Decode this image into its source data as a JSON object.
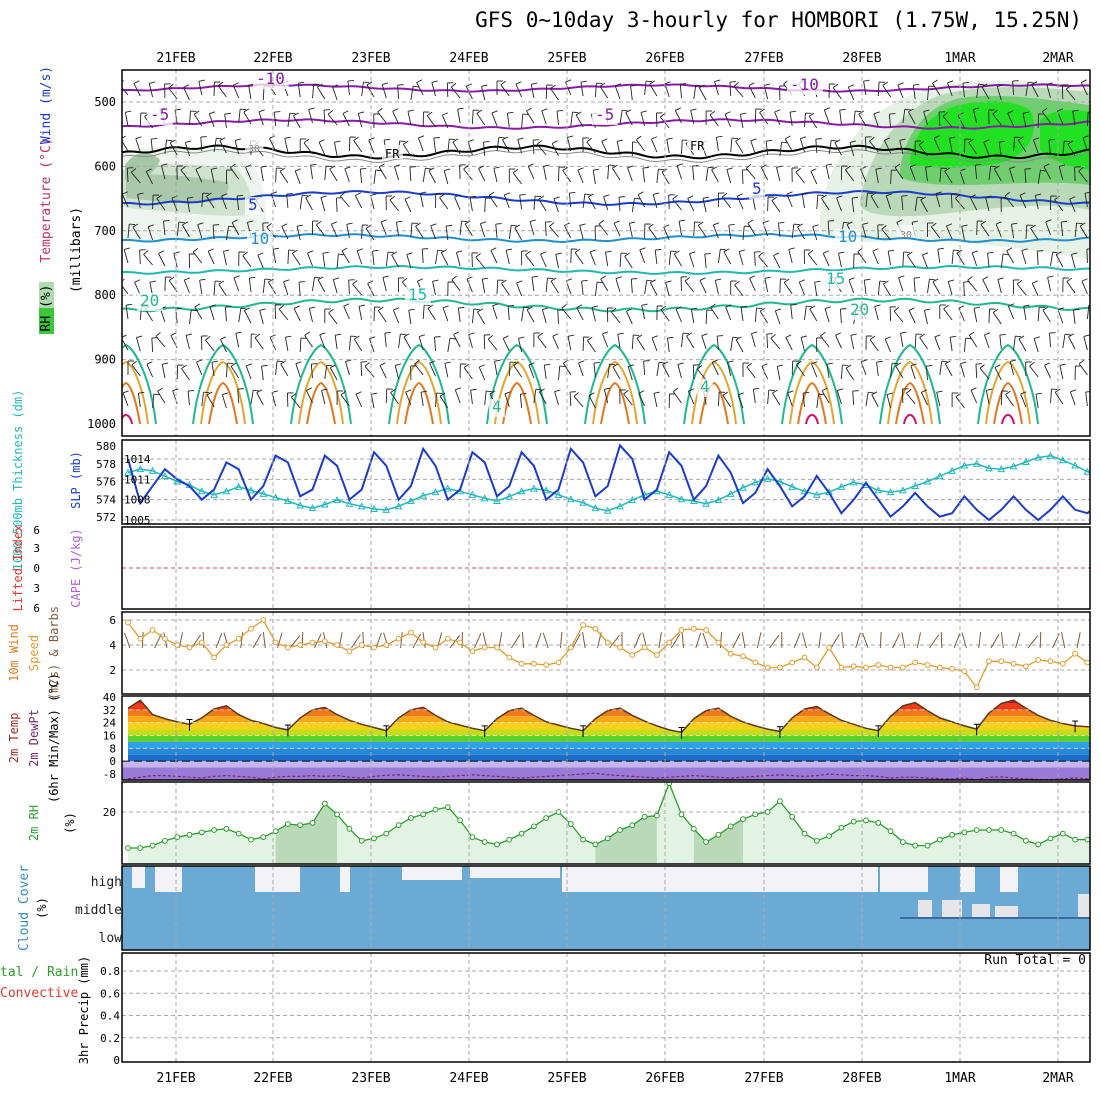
{
  "title": "GFS 0~10day 3-hourly for HOMBORI (1.75W, 15.25N)",
  "dates": [
    "21FEB",
    "22FEB",
    "23FEB",
    "24FEB",
    "25FEB",
    "26FEB",
    "27FEB",
    "28FEB",
    "1MAR",
    "2MAR"
  ],
  "colors": {
    "grid": "#a8a8a8",
    "slp": "#1a3cc8",
    "thickness": "#22b8c0",
    "wind_speed": "#e29b2e",
    "dewpoint": "#7a2a6e",
    "rh_line": "#2aa02a",
    "rh_fill": "#e3f3e3",
    "cloud": "#6aaad4",
    "cloud_clear": "#f3f2f7",
    "lifted_zero": "#e04848"
  },
  "panels": {
    "profile": {
      "ylabel_parts": [
        "RH (%)",
        "Temperature (°C)",
        "Wind (m/s)"
      ],
      "ylabel_units": "(millibars)",
      "y_ticks": [
        "500",
        "600",
        "700",
        "800",
        "900",
        "1000"
      ],
      "labels": [
        "-10",
        "-10",
        "-5",
        "-5",
        "FR",
        "FR",
        "5",
        "5",
        "10",
        "10",
        "15",
        "15",
        "20",
        "20",
        "30",
        "30",
        "4",
        "4"
      ],
      "y_range": [
        450,
        1000
      ]
    },
    "slp": {
      "ylabel_left": "1000-500mb Thickness (dm)",
      "ylabel_right": "SLP (mb)",
      "thickness_ticks": [
        "580",
        "578",
        "576",
        "574",
        "572"
      ],
      "slp_ticks": [
        "1014",
        "1011",
        "1008",
        "1005"
      ]
    },
    "cape": {
      "ylabel_left": "Lifted Index",
      "ylabel_right": "CAPE (J/kg)",
      "ticks": [
        "6",
        "3",
        "0",
        "3",
        "6"
      ]
    },
    "wind10m": {
      "ylabel_a": "10m Wind",
      "ylabel_b": "Speed",
      "ylabel_c": "(m/s) & Barbs",
      "ticks": [
        "6",
        "4",
        "2"
      ]
    },
    "temp2m": {
      "ylabel_a": "2m Temp",
      "ylabel_b": "2m DewPt",
      "ylabel_c": "(6hr Min/Max) (°C)",
      "ticks": [
        "40",
        "32",
        "24",
        "16",
        "8",
        "0",
        "-8"
      ]
    },
    "rh2m": {
      "ylabel": "2m RH",
      "unit": "(%)",
      "ticks": [
        "20"
      ]
    },
    "cloud": {
      "ylabel": "Cloud Cover",
      "unit": "(%)",
      "levels": [
        "high",
        "middle",
        "low"
      ]
    },
    "precip": {
      "ylabel_a": "tal / Rain",
      "ylabel_b": "Convective",
      "ylabel_c": "3hr Precip (mm)",
      "ticks": [
        "0.8",
        "0.6",
        "0.4",
        "0.2",
        "0"
      ],
      "run_total": "Run Total = 0"
    }
  },
  "chart_data": [
    {
      "type": "line",
      "name": "sea level pressure and 1000-500mb thickness",
      "x": [
        "20FEB 12Z",
        "20FEB 15Z",
        "20FEB 18Z",
        "20FEB 21Z",
        "21FEB 00Z",
        "21FEB 03Z",
        "21FEB 06Z",
        "21FEB 09Z",
        "21FEB 12Z",
        "21FEB 15Z",
        "21FEB 18Z",
        "21FEB 21Z",
        "22FEB 00Z",
        "22FEB 03Z",
        "22FEB 06Z",
        "22FEB 09Z",
        "22FEB 12Z",
        "22FEB 15Z",
        "22FEB 18Z",
        "22FEB 21Z",
        "23FEB 00Z",
        "23FEB 03Z",
        "23FEB 06Z",
        "23FEB 09Z",
        "23FEB 12Z",
        "23FEB 15Z",
        "23FEB 18Z",
        "23FEB 21Z",
        "24FEB 00Z",
        "24FEB 03Z",
        "24FEB 06Z",
        "24FEB 09Z",
        "24FEB 12Z",
        "24FEB 15Z",
        "24FEB 18Z",
        "24FEB 21Z",
        "25FEB 00Z",
        "25FEB 03Z",
        "25FEB 06Z",
        "25FEB 09Z",
        "25FEB 12Z",
        "25FEB 15Z",
        "25FEB 18Z",
        "25FEB 21Z",
        "26FEB 00Z",
        "26FEB 03Z",
        "26FEB 06Z",
        "26FEB 09Z",
        "26FEB 12Z",
        "26FEB 15Z",
        "26FEB 18Z",
        "26FEB 21Z",
        "27FEB 00Z",
        "27FEB 03Z",
        "27FEB 06Z",
        "27FEB 09Z",
        "27FEB 12Z",
        "27FEB 15Z",
        "27FEB 18Z",
        "27FEB 21Z",
        "28FEB 00Z",
        "28FEB 03Z",
        "28FEB 06Z",
        "28FEB 09Z",
        "28FEB 12Z",
        "28FEB 15Z",
        "28FEB 18Z",
        "28FEB 21Z",
        "1MAR 00Z",
        "1MAR 03Z",
        "1MAR 06Z",
        "1MAR 09Z",
        "1MAR 12Z",
        "1MAR 15Z",
        "1MAR 18Z",
        "1MAR 21Z",
        "2MAR 00Z",
        "2MAR 03Z",
        "2MAR 06Z",
        "2MAR 09Z"
      ],
      "series": [
        {
          "values": [
            1014.0,
            1007.5,
            1010.0,
            1012.5,
            1011.0,
            1010.0,
            1008.0,
            1009.5,
            1013.5,
            1012.5,
            1008.0,
            1010.0,
            1014.5,
            1013.5,
            1008.5,
            1009.5,
            1014.5,
            1013.0,
            1008.0,
            1009.5,
            1015.0,
            1013.0,
            1008.0,
            1010.0,
            1015.5,
            1013.0,
            1008.0,
            1009.5,
            1015.0,
            1013.5,
            1008.5,
            1010.0,
            1015.0,
            1013.0,
            1008.0,
            1009.5,
            1015.5,
            1013.5,
            1008.5,
            1010.0,
            1016.0,
            1014.0,
            1008.0,
            1009.5,
            1015.0,
            1013.0,
            1008.0,
            1010.0,
            1014.5,
            1012.0,
            1007.5,
            1009.0,
            1012.5,
            1010.0,
            1007.0,
            1008.5,
            1011.5,
            1009.0,
            1006.0,
            1008.0,
            1010.5,
            1008.0,
            1005.5,
            1007.0,
            1009.0,
            1007.0,
            1005.5,
            1006.0,
            1008.5,
            1006.5,
            1005.0,
            1006.5,
            1008.5,
            1006.5,
            1005.0,
            1006.5,
            1008.5,
            1006.5,
            1006.0,
            1007.5
          ]
        },
        {
          "values": [
            577.0,
            577.4,
            577.2,
            576.6,
            576.0,
            575.6,
            574.9,
            574.5,
            574.9,
            575.4,
            575.0,
            574.6,
            574.2,
            573.8,
            573.3,
            573.0,
            573.4,
            573.9,
            573.5,
            573.2,
            572.9,
            572.8,
            573.2,
            573.8,
            574.4,
            574.8,
            575.2,
            574.9,
            574.5,
            574.1,
            573.8,
            574.3,
            574.9,
            575.2,
            575.0,
            574.5,
            574.0,
            573.6,
            573.0,
            572.7,
            573.2,
            573.9,
            574.5,
            574.9,
            574.5,
            574.0,
            573.8,
            573.5,
            573.9,
            574.6,
            575.3,
            575.9,
            576.3,
            576.0,
            575.4,
            574.9,
            574.5,
            574.8,
            575.4,
            575.9,
            575.6,
            575.0,
            574.8,
            575.0,
            575.5,
            576.0,
            576.6,
            577.2,
            577.8,
            578.0,
            577.5,
            577.4,
            577.7,
            578.2,
            578.7,
            578.9,
            578.4,
            577.8,
            577.1,
            576.6
          ]
        }
      ]
    },
    {
      "type": "line",
      "name": "10m wind speed",
      "x": [
        "20FEB 12Z",
        "20FEB 15Z",
        "20FEB 18Z",
        "20FEB 21Z",
        "21FEB 00Z",
        "21FEB 03Z",
        "21FEB 06Z",
        "21FEB 09Z",
        "21FEB 12Z",
        "21FEB 15Z",
        "21FEB 18Z",
        "21FEB 21Z",
        "22FEB 00Z",
        "22FEB 03Z",
        "22FEB 06Z",
        "22FEB 09Z",
        "22FEB 12Z",
        "22FEB 15Z",
        "22FEB 18Z",
        "22FEB 21Z",
        "23FEB 00Z",
        "23FEB 03Z",
        "23FEB 06Z",
        "23FEB 09Z",
        "23FEB 12Z",
        "23FEB 15Z",
        "23FEB 18Z",
        "23FEB 21Z",
        "24FEB 00Z",
        "24FEB 03Z",
        "24FEB 06Z",
        "24FEB 09Z",
        "24FEB 12Z",
        "24FEB 15Z",
        "24FEB 18Z",
        "24FEB 21Z",
        "25FEB 00Z",
        "25FEB 03Z",
        "25FEB 06Z",
        "25FEB 09Z",
        "25FEB 12Z",
        "25FEB 15Z",
        "25FEB 18Z",
        "25FEB 21Z",
        "26FEB 00Z",
        "26FEB 03Z",
        "26FEB 06Z",
        "26FEB 09Z",
        "26FEB 12Z",
        "26FEB 15Z",
        "26FEB 18Z",
        "26FEB 21Z",
        "27FEB 00Z",
        "27FEB 03Z",
        "27FEB 06Z",
        "27FEB 09Z",
        "27FEB 12Z",
        "27FEB 15Z",
        "27FEB 18Z",
        "27FEB 21Z",
        "28FEB 00Z",
        "28FEB 03Z",
        "28FEB 06Z",
        "28FEB 09Z",
        "28FEB 12Z",
        "28FEB 15Z",
        "28FEB 18Z",
        "28FEB 21Z",
        "1MAR 00Z",
        "1MAR 03Z",
        "1MAR 06Z",
        "1MAR 09Z",
        "1MAR 12Z",
        "1MAR 15Z",
        "1MAR 18Z",
        "1MAR 21Z",
        "2MAR 00Z",
        "2MAR 03Z",
        "2MAR 06Z",
        "2MAR 09Z"
      ],
      "series": [
        {
          "values": [
            5.8,
            4.5,
            5.2,
            4.5,
            4.0,
            3.8,
            4.2,
            3.0,
            4.0,
            4.5,
            5.3,
            6.0,
            4.2,
            3.8,
            4.0,
            4.2,
            4.3,
            4.0,
            3.5,
            4.0,
            3.8,
            4.0,
            4.5,
            5.0,
            4.2,
            3.8,
            4.5,
            4.2,
            3.5,
            3.8,
            3.8,
            3.0,
            2.5,
            2.5,
            2.4,
            2.6,
            3.8,
            5.6,
            5.3,
            4.2,
            3.8,
            3.2,
            3.8,
            3.2,
            4.2,
            5.2,
            5.3,
            5.2,
            4.2,
            3.3,
            3.1,
            2.6,
            2.2,
            2.2,
            2.6,
            3.0,
            2.2,
            3.8,
            2.2,
            2.3,
            2.2,
            2.4,
            2.2,
            2.2,
            2.6,
            2.4,
            2.2,
            2.1,
            1.9,
            0.6,
            2.7,
            2.7,
            2.5,
            2.3,
            2.8,
            2.7,
            2.5,
            3.3,
            2.6,
            2.4
          ]
        }
      ]
    },
    {
      "type": "line",
      "name": "2m temperature and dew point",
      "x": [
        "20FEB 12Z",
        "20FEB 15Z",
        "20FEB 18Z",
        "20FEB 21Z",
        "21FEB 00Z",
        "21FEB 03Z",
        "21FEB 06Z",
        "21FEB 09Z",
        "21FEB 12Z",
        "21FEB 15Z",
        "21FEB 18Z",
        "21FEB 21Z",
        "22FEB 00Z",
        "22FEB 03Z",
        "22FEB 06Z",
        "22FEB 09Z",
        "22FEB 12Z",
        "22FEB 15Z",
        "22FEB 18Z",
        "22FEB 21Z",
        "23FEB 00Z",
        "23FEB 03Z",
        "23FEB 06Z",
        "23FEB 09Z",
        "23FEB 12Z",
        "23FEB 15Z",
        "23FEB 18Z",
        "23FEB 21Z",
        "24FEB 00Z",
        "24FEB 03Z",
        "24FEB 06Z",
        "24FEB 09Z",
        "24FEB 12Z",
        "24FEB 15Z",
        "24FEB 18Z",
        "24FEB 21Z",
        "25FEB 00Z",
        "25FEB 03Z",
        "25FEB 06Z",
        "25FEB 09Z",
        "25FEB 12Z",
        "25FEB 15Z",
        "25FEB 18Z",
        "25FEB 21Z",
        "26FEB 00Z",
        "26FEB 03Z",
        "26FEB 06Z",
        "26FEB 09Z",
        "26FEB 12Z",
        "26FEB 15Z",
        "26FEB 18Z",
        "26FEB 21Z",
        "27FEB 00Z",
        "27FEB 03Z",
        "27FEB 06Z",
        "27FEB 09Z",
        "27FEB 12Z",
        "27FEB 15Z",
        "27FEB 18Z",
        "27FEB 21Z",
        "28FEB 00Z",
        "28FEB 03Z",
        "28FEB 06Z",
        "28FEB 09Z",
        "28FEB 12Z",
        "28FEB 15Z",
        "28FEB 18Z",
        "28FEB 21Z",
        "1MAR 00Z",
        "1MAR 03Z",
        "1MAR 06Z",
        "1MAR 09Z",
        "1MAR 12Z",
        "1MAR 15Z",
        "1MAR 18Z",
        "1MAR 21Z",
        "2MAR 00Z",
        "2MAR 03Z",
        "2MAR 06Z",
        "2MAR 09Z"
      ],
      "series": [
        {
          "values": [
            33.0,
            38.0,
            29.0,
            26.5,
            24.5,
            23.0,
            27.0,
            32.5,
            34.5,
            29.0,
            25.5,
            23.5,
            21.0,
            19.5,
            27.0,
            32.0,
            33.5,
            29.0,
            25.5,
            23.0,
            21.0,
            19.0,
            27.0,
            32.0,
            33.5,
            28.5,
            24.5,
            22.5,
            20.5,
            19.0,
            26.5,
            31.5,
            33.0,
            28.5,
            24.5,
            22.5,
            20.5,
            19.0,
            26.5,
            31.5,
            33.0,
            28.5,
            25.0,
            22.0,
            19.5,
            18.0,
            26.5,
            31.5,
            33.0,
            28.0,
            24.5,
            22.0,
            20.0,
            18.5,
            27.0,
            32.5,
            34.0,
            29.5,
            25.5,
            23.0,
            20.5,
            19.0,
            28.0,
            34.5,
            36.5,
            31.5,
            27.0,
            24.5,
            22.0,
            20.0,
            30.0,
            36.0,
            38.0,
            33.0,
            28.5,
            25.5,
            23.5,
            22.0,
            21.5,
            21.0
          ]
        },
        {
          "values": [
            -11.0,
            -10.0,
            -9.0,
            -9.0,
            -9.5,
            -10.0,
            -10.5,
            -9.5,
            -9.0,
            -9.5,
            -10.0,
            -11.0,
            -10.0,
            -9.5,
            -9.5,
            -9.0,
            -9.5,
            -9.0,
            -10.0,
            -10.5,
            -9.5,
            -8.8,
            -8.5,
            -9.0,
            -9.5,
            -10.0,
            -9.5,
            -9.0,
            -8.5,
            -9.0,
            -9.5,
            -10.0,
            -10.5,
            -10.0,
            -9.5,
            -9.0,
            -8.5,
            -8.0,
            -7.5,
            -8.5,
            -9.0,
            -9.5,
            -10.0,
            -10.5,
            -10.0,
            -9.5,
            -9.0,
            -9.5,
            -10.0,
            -10.5,
            -10.0,
            -9.5,
            -9.0,
            -8.5,
            -9.0,
            -9.5,
            -9.0,
            -8.0,
            -8.5,
            -9.0,
            -9.0,
            -9.5,
            -10.5,
            -10.0,
            -10.0,
            -10.5,
            -11.0,
            -11.0,
            -10.5,
            -11.5,
            -10.0,
            -9.8,
            -10.5,
            -11.0,
            -11.5,
            -11.5,
            -11.0,
            -10.5,
            -11.0,
            -11.5
          ]
        }
      ]
    },
    {
      "type": "area",
      "name": "2m relative humidity",
      "x": [
        "20FEB 12Z",
        "20FEB 15Z",
        "20FEB 18Z",
        "20FEB 21Z",
        "21FEB 00Z",
        "21FEB 03Z",
        "21FEB 06Z",
        "21FEB 09Z",
        "21FEB 12Z",
        "21FEB 15Z",
        "21FEB 18Z",
        "21FEB 21Z",
        "22FEB 00Z",
        "22FEB 03Z",
        "22FEB 06Z",
        "22FEB 09Z",
        "22FEB 12Z",
        "22FEB 15Z",
        "22FEB 18Z",
        "22FEB 21Z",
        "23FEB 00Z",
        "23FEB 03Z",
        "23FEB 06Z",
        "23FEB 09Z",
        "23FEB 12Z",
        "23FEB 15Z",
        "23FEB 18Z",
        "23FEB 21Z",
        "24FEB 00Z",
        "24FEB 03Z",
        "24FEB 06Z",
        "24FEB 09Z",
        "24FEB 12Z",
        "24FEB 15Z",
        "24FEB 18Z",
        "24FEB 21Z",
        "25FEB 00Z",
        "25FEB 03Z",
        "25FEB 06Z",
        "25FEB 09Z",
        "25FEB 12Z",
        "25FEB 15Z",
        "25FEB 18Z",
        "25FEB 21Z",
        "26FEB 00Z",
        "26FEB 03Z",
        "26FEB 06Z",
        "26FEB 09Z",
        "26FEB 12Z",
        "26FEB 15Z",
        "26FEB 18Z",
        "26FEB 21Z",
        "27FEB 00Z",
        "27FEB 03Z",
        "27FEB 06Z",
        "27FEB 09Z",
        "27FEB 12Z",
        "27FEB 15Z",
        "27FEB 18Z",
        "27FEB 21Z",
        "28FEB 00Z",
        "28FEB 03Z",
        "28FEB 06Z",
        "28FEB 09Z",
        "28FEB 12Z",
        "28FEB 15Z",
        "28FEB 18Z",
        "28FEB 21Z",
        "1MAR 00Z",
        "1MAR 03Z",
        "1MAR 06Z",
        "1MAR 09Z",
        "1MAR 12Z",
        "1MAR 15Z",
        "1MAR 18Z",
        "1MAR 21Z",
        "2MAR 00Z",
        "2MAR 03Z",
        "2MAR 06Z",
        "2MAR 09Z"
      ],
      "series": [
        {
          "values": [
            5.0,
            5.0,
            6.0,
            8.0,
            9.5,
            10.5,
            11.5,
            12.5,
            13.0,
            11.0,
            8.5,
            9.5,
            12.0,
            15.0,
            14.5,
            15.5,
            23.5,
            19.0,
            13.0,
            8.0,
            9.0,
            11.0,
            14.5,
            17.5,
            19.0,
            21.0,
            22.0,
            16.5,
            9.5,
            7.5,
            6.5,
            8.5,
            11.0,
            14.0,
            17.5,
            20.0,
            15.0,
            8.5,
            6.5,
            9.0,
            12.5,
            14.5,
            18.0,
            18.5,
            32.0,
            19.0,
            13.0,
            7.5,
            10.5,
            14.0,
            17.0,
            19.0,
            20.0,
            24.5,
            18.0,
            11.0,
            8.0,
            10.0,
            13.5,
            16.0,
            16.5,
            15.5,
            12.0,
            7.5,
            6.0,
            6.0,
            8.5,
            10.5,
            11.5,
            12.5,
            12.5,
            12.5,
            11.0,
            8.0,
            6.5,
            9.0,
            11.0,
            8.5,
            8.5,
            9.5
          ]
        }
      ]
    }
  ]
}
